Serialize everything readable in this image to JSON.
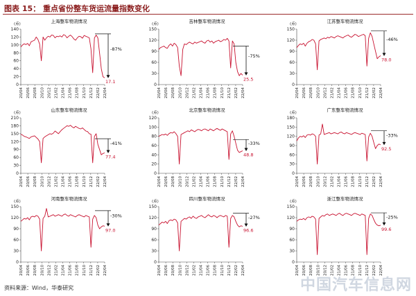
{
  "header": {
    "title": "图表 15：  重点省份整车货运流量指数变化"
  },
  "footer": {
    "source": "资料来源：Wind，华泰研究"
  },
  "watermark": {
    "text": "中国汽车信息网"
  },
  "colors": {
    "line": "#c8102e",
    "text": "#222222",
    "axis": "#444444"
  },
  "chart_data": [
    {
      "type": "line",
      "title": "上海整车物流情况",
      "unit": "(点)",
      "ylim": [
        0,
        140
      ],
      "yticks": [
        0,
        20,
        40,
        60,
        80,
        100,
        120,
        140
      ],
      "xticks": [
        "20/04",
        "20/06",
        "20/08",
        "20/10",
        "20/12",
        "21/02",
        "21/04",
        "21/06",
        "21/08",
        "21/10",
        "21/12",
        "22/02",
        "22/04"
      ],
      "series": [
        {
          "values": [
            95,
            100,
            103,
            101,
            104,
            98,
            108,
            110,
            112,
            120,
            114,
            102,
            60,
            120,
            112,
            118,
            122,
            120,
            125,
            124,
            118,
            122,
            121,
            123,
            120,
            126,
            124,
            118,
            122,
            125,
            121,
            115,
            112,
            118,
            122,
            121,
            117,
            124,
            122,
            120,
            118,
            90,
            30,
            118,
            125,
            118,
            80,
            40,
            20,
            17.1
          ]
        }
      ],
      "annotation": {
        "label": "-87%",
        "end_label": "17.1",
        "ref_value": 128
      }
    },
    {
      "type": "line",
      "title": "吉林整车物流情况",
      "unit": "(点)",
      "ylim": [
        0,
        150
      ],
      "yticks": [
        0,
        30,
        60,
        90,
        120,
        150
      ],
      "xticks": [
        "20/04",
        "20/06",
        "20/08",
        "20/10",
        "20/12",
        "21/02",
        "21/04",
        "21/06",
        "21/08",
        "21/10",
        "21/12",
        "22/02",
        "22/04"
      ],
      "series": [
        {
          "values": [
            95,
            100,
            102,
            104,
            100,
            98,
            106,
            110,
            104,
            112,
            108,
            100,
            50,
            24,
            95,
            110,
            108,
            112,
            115,
            112,
            110,
            115,
            112,
            114,
            116,
            118,
            114,
            112,
            118,
            120,
            115,
            118,
            112,
            116,
            118,
            120,
            116,
            118,
            122,
            120,
            125,
            118,
            45,
            118,
            110,
            60,
            35,
            24,
            30,
            25.5
          ]
        }
      ],
      "annotation": {
        "label": "-75%",
        "end_label": "25.5",
        "ref_value": 104
      }
    },
    {
      "type": "line",
      "title": "江苏整车物流情况",
      "unit": "(点)",
      "ylim": [
        0,
        150
      ],
      "yticks": [
        0,
        30,
        60,
        90,
        120,
        150
      ],
      "xticks": [
        "20/04",
        "20/06",
        "20/08",
        "20/10",
        "20/12",
        "21/02",
        "21/04",
        "21/06",
        "21/08",
        "21/10",
        "21/12",
        "22/02",
        "22/04"
      ],
      "series": [
        {
          "values": [
            100,
            106,
            110,
            108,
            112,
            104,
            112,
            116,
            118,
            122,
            120,
            110,
            40,
            118,
            122,
            124,
            126,
            124,
            128,
            126,
            130,
            128,
            126,
            130,
            132,
            130,
            128,
            126,
            130,
            132,
            134,
            130,
            128,
            132,
            136,
            134,
            130,
            132,
            134,
            136,
            132,
            50,
            125,
            140,
            130,
            110,
            90,
            70,
            75,
            78.0
          ]
        }
      ],
      "annotation": {
        "label": "-46%",
        "end_label": "78.0",
        "ref_value": 145
      }
    },
    {
      "type": "line",
      "title": "山东整车物流情况",
      "unit": "(点)",
      "ylim": [
        0,
        210
      ],
      "yticks": [
        0,
        30,
        60,
        90,
        120,
        150,
        180,
        210
      ],
      "xticks": [
        "20/04",
        "20/06",
        "20/08",
        "20/10",
        "20/12",
        "21/02",
        "21/04",
        "21/06",
        "21/08",
        "21/10",
        "21/12",
        "22/02",
        "22/04"
      ],
      "series": [
        {
          "values": [
            148,
            145,
            140,
            138,
            135,
            132,
            138,
            140,
            142,
            136,
            130,
            120,
            40,
            132,
            138,
            142,
            146,
            150,
            148,
            152,
            160,
            155,
            150,
            158,
            165,
            170,
            175,
            180,
            178,
            182,
            176,
            172,
            178,
            174,
            170,
            168,
            172,
            166,
            160,
            158,
            150,
            148,
            40,
            140,
            150,
            110,
            90,
            70,
            75,
            77.4
          ]
        }
      ],
      "annotation": {
        "label": "-41%",
        "end_label": "77.4",
        "ref_value": 131
      }
    },
    {
      "type": "line",
      "title": "北京整车物流情况",
      "unit": "(点)",
      "ylim": [
        0,
        120
      ],
      "yticks": [
        0,
        20,
        40,
        60,
        80,
        100,
        120
      ],
      "xticks": [
        "20/04",
        "20/06",
        "20/08",
        "20/10",
        "20/12",
        "21/02",
        "21/04",
        "21/06",
        "21/08",
        "21/10",
        "21/12",
        "22/02",
        "22/04"
      ],
      "series": [
        {
          "values": [
            80,
            82,
            84,
            83,
            85,
            82,
            86,
            88,
            87,
            90,
            86,
            80,
            20,
            84,
            86,
            88,
            90,
            92,
            90,
            94,
            92,
            90,
            93,
            95,
            94,
            92,
            95,
            96,
            94,
            92,
            96,
            94,
            92,
            95,
            97,
            95,
            93,
            96,
            94,
            92,
            90,
            30,
            85,
            92,
            80,
            65,
            50,
            45,
            47,
            48.8
          ]
        }
      ],
      "annotation": {
        "label": "-33%",
        "end_label": "48.8",
        "ref_value": 73
      }
    },
    {
      "type": "line",
      "title": "广东整车物流情况",
      "unit": "(点)",
      "ylim": [
        0,
        180
      ],
      "yticks": [
        0,
        30,
        60,
        90,
        120,
        150,
        180
      ],
      "xticks": [
        "20/04",
        "20/06",
        "20/08",
        "20/10",
        "20/12",
        "21/02",
        "21/04",
        "21/06",
        "21/08",
        "21/10",
        "21/12",
        "22/02",
        "22/04"
      ],
      "series": [
        {
          "values": [
            105,
            115,
            120,
            118,
            122,
            116,
            124,
            126,
            124,
            128,
            126,
            120,
            30,
            124,
            128,
            160,
            126,
            128,
            130,
            132,
            128,
            130,
            132,
            130,
            128,
            132,
            134,
            130,
            128,
            132,
            130,
            128,
            126,
            130,
            132,
            130,
            128,
            126,
            130,
            128,
            126,
            40,
            118,
            130,
            120,
            100,
            80,
            90,
            95,
            92.5
          ]
        }
      ],
      "annotation": {
        "label": "-33%",
        "end_label": "92.5",
        "ref_value": 138
      }
    },
    {
      "type": "line",
      "title": "河南整车物流情况",
      "unit": "(点)",
      "ylim": [
        0,
        150
      ],
      "yticks": [
        0,
        30,
        60,
        90,
        120,
        150
      ],
      "xticks": [
        "20/04",
        "20/06",
        "20/08",
        "20/10",
        "20/12",
        "21/02",
        "21/04",
        "21/06",
        "21/08",
        "21/10",
        "21/12",
        "22/02",
        "22/04"
      ],
      "series": [
        {
          "values": [
            110,
            114,
            118,
            116,
            120,
            114,
            122,
            124,
            122,
            126,
            124,
            116,
            30,
            118,
            124,
            145,
            122,
            124,
            126,
            128,
            124,
            126,
            128,
            126,
            124,
            128,
            130,
            126,
            124,
            128,
            126,
            124,
            122,
            126,
            128,
            126,
            124,
            122,
            126,
            124,
            122,
            40,
            116,
            126,
            120,
            100,
            90,
            95,
            98,
            97.0
          ]
        }
      ],
      "annotation": {
        "label": "-30%",
        "end_label": "97.0",
        "ref_value": 139
      }
    },
    {
      "type": "line",
      "title": "四川整车物流情况",
      "unit": "(点)",
      "ylim": [
        0,
        150
      ],
      "yticks": [
        0,
        30,
        60,
        90,
        120,
        150
      ],
      "xticks": [
        "20/04",
        "20/06",
        "20/08",
        "20/10",
        "20/12",
        "21/02",
        "21/04",
        "21/06",
        "21/08",
        "21/10",
        "21/12",
        "22/02",
        "22/04"
      ],
      "series": [
        {
          "values": [
            100,
            104,
            108,
            106,
            110,
            104,
            112,
            114,
            112,
            116,
            114,
            106,
            30,
            110,
            114,
            118,
            116,
            120,
            122,
            118,
            124,
            120,
            118,
            122,
            124,
            126,
            122,
            120,
            124,
            128,
            124,
            122,
            126,
            124,
            120,
            124,
            126,
            124,
            122,
            126,
            124,
            40,
            118,
            126,
            122,
            110,
            100,
            95,
            98,
            96.6
          ]
        }
      ],
      "annotation": {
        "label": "-27%",
        "end_label": "96.6",
        "ref_value": 132
      }
    },
    {
      "type": "line",
      "title": "浙江整车物流情况",
      "unit": "(点)",
      "ylim": [
        0,
        150
      ],
      "yticks": [
        0,
        30,
        60,
        90,
        120,
        150
      ],
      "xticks": [
        "20/04",
        "20/06",
        "20/08",
        "20/10",
        "20/12",
        "21/02",
        "21/04",
        "21/06",
        "21/08",
        "21/10",
        "21/12",
        "22/02",
        "22/04"
      ],
      "series": [
        {
          "values": [
            110,
            114,
            116,
            115,
            118,
            114,
            120,
            122,
            120,
            124,
            122,
            116,
            20,
            118,
            122,
            126,
            124,
            128,
            130,
            126,
            128,
            130,
            128,
            126,
            130,
            132,
            128,
            126,
            130,
            132,
            130,
            128,
            126,
            130,
            132,
            130,
            128,
            126,
            130,
            128,
            126,
            20,
            118,
            130,
            126,
            115,
            105,
            100,
            98,
            99.6
          ]
        }
      ],
      "annotation": {
        "label": "-25%",
        "end_label": "99.6",
        "ref_value": 133
      }
    }
  ]
}
